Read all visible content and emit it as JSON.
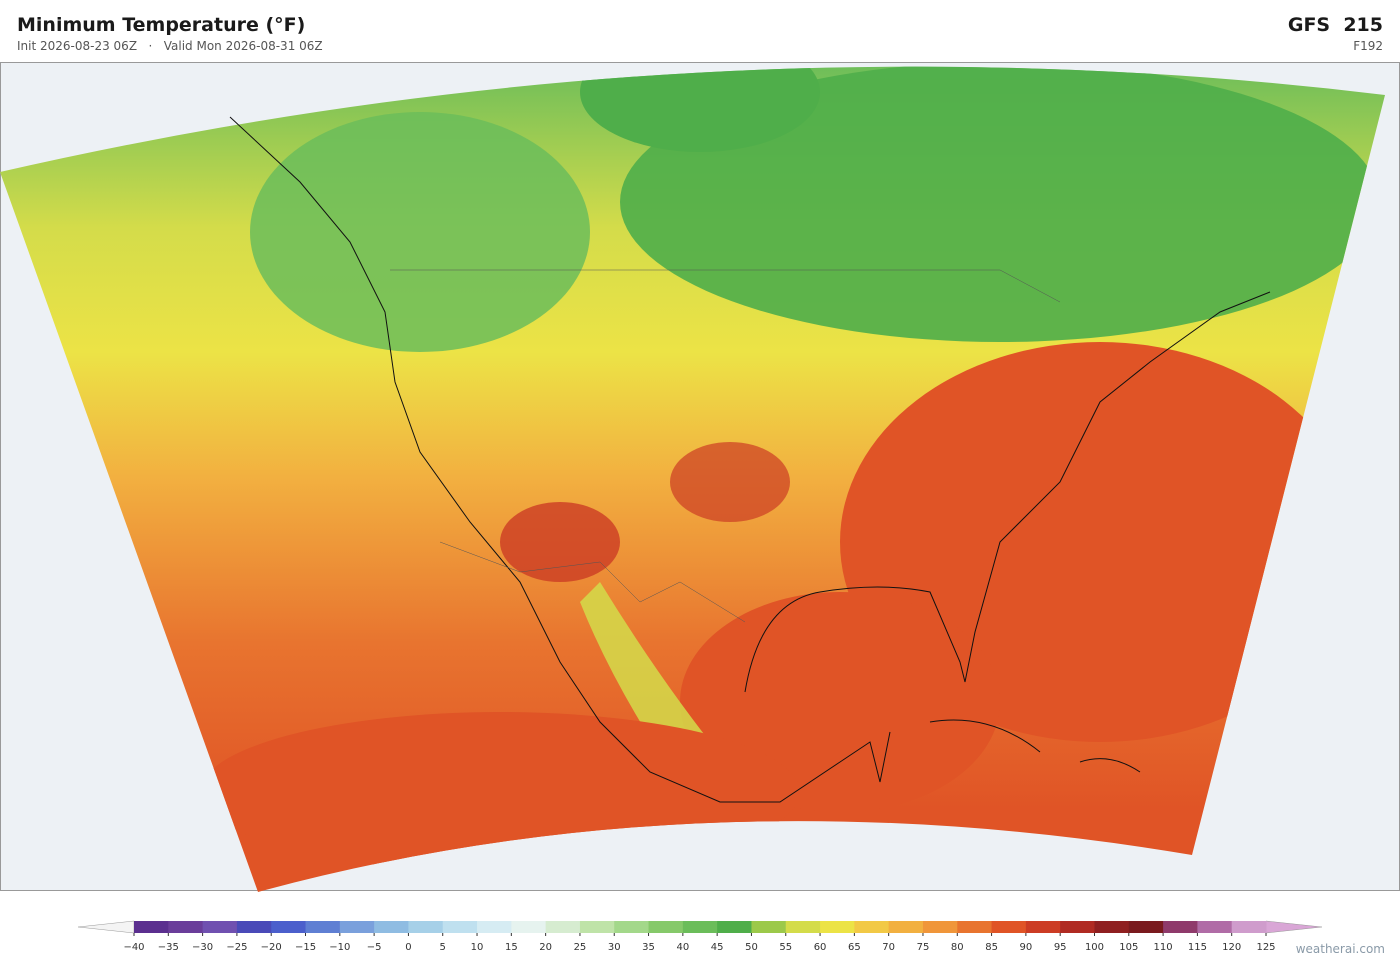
{
  "header": {
    "title": "Minimum Temperature  (°F)",
    "subtitle": "Init 2026-08-23 06Z   ·   Valid Mon 2026-08-31 06Z",
    "model": "GFS  215",
    "forecast_hour": "F192"
  },
  "colorbar": {
    "labels": [
      "−40",
      "−35",
      "−30",
      "−25",
      "−20",
      "−15",
      "−10",
      "−5",
      "0",
      "5",
      "10",
      "15",
      "20",
      "25",
      "30",
      "35",
      "40",
      "45",
      "50",
      "55",
      "60",
      "65",
      "70",
      "75",
      "80",
      "85",
      "90",
      "95",
      "100",
      "105",
      "110",
      "115",
      "120",
      "125"
    ],
    "colors": [
      "#5b2f8f",
      "#6a3d9a",
      "#7050b0",
      "#4a4ab8",
      "#4b5fcc",
      "#5f7fd3",
      "#7aa0dc",
      "#8fbce2",
      "#a6d0e8",
      "#bfe0ef",
      "#d6ecf3",
      "#e6f3ef",
      "#d6ecd0",
      "#bfe3a8",
      "#a3d88a",
      "#86c96a",
      "#6bbd5a",
      "#4fae4a",
      "#9cc94a",
      "#d4dc4a",
      "#ece346",
      "#f2c946",
      "#f2b040",
      "#f0963a",
      "#e8742f",
      "#e05426",
      "#cc3c24",
      "#b02a22",
      "#8f1f20",
      "#7a1a1e",
      "#8f3a6b",
      "#b06ca6",
      "#cf9ccc"
    ],
    "under_color": "#f4f4f4",
    "over_color": "#d9a6d6"
  },
  "footer": {
    "credit": "weatherai.com"
  }
}
